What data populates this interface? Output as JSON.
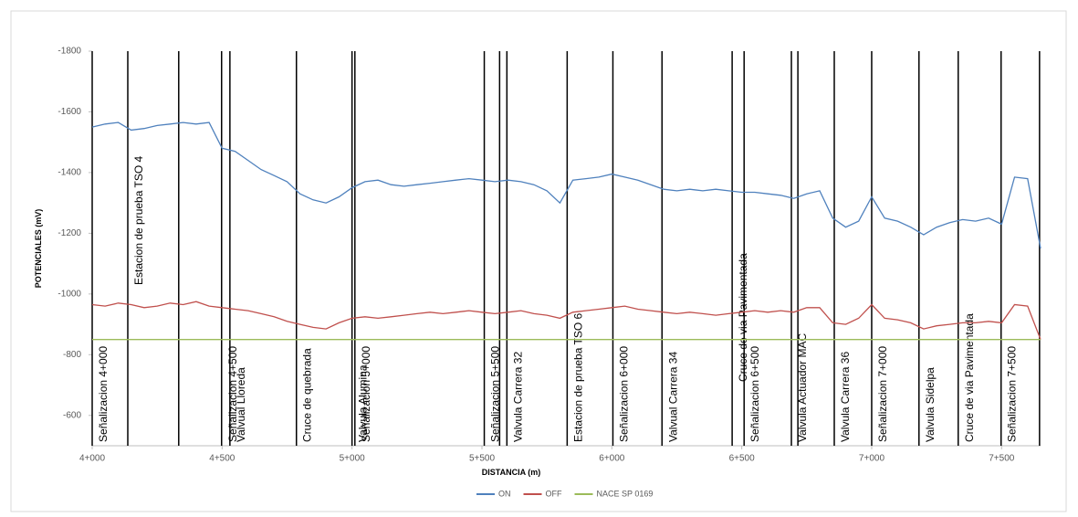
{
  "chart_data": {
    "type": "line",
    "x_label": "DISTANCIA (m)",
    "y_label": "POTENCIALES (mV)",
    "xlim": [
      4000,
      7650
    ],
    "ylim": [
      -500,
      -1800
    ],
    "xticks": [
      {
        "value": 4000,
        "label": "4+000"
      },
      {
        "value": 4500,
        "label": "4+500"
      },
      {
        "value": 5000,
        "label": "5+000"
      },
      {
        "value": 5500,
        "label": "5+500"
      },
      {
        "value": 6000,
        "label": "6+000"
      },
      {
        "value": 6500,
        "label": "6+500"
      },
      {
        "value": 7000,
        "label": "7+000"
      },
      {
        "value": 7500,
        "label": "7+500"
      }
    ],
    "yticks": [
      -1800,
      -1600,
      -1400,
      -1200,
      -1000,
      -800,
      -600
    ],
    "x": [
      4000,
      4050,
      4100,
      4150,
      4200,
      4250,
      4300,
      4350,
      4400,
      4450,
      4500,
      4550,
      4600,
      4650,
      4700,
      4750,
      4800,
      4850,
      4900,
      4950,
      5000,
      5050,
      5100,
      5150,
      5200,
      5250,
      5300,
      5350,
      5400,
      5450,
      5500,
      5550,
      5600,
      5650,
      5700,
      5750,
      5800,
      5850,
      5900,
      5950,
      6000,
      6050,
      6100,
      6150,
      6200,
      6250,
      6300,
      6350,
      6400,
      6450,
      6500,
      6550,
      6600,
      6650,
      6700,
      6750,
      6800,
      6850,
      6900,
      6950,
      7000,
      7050,
      7100,
      7150,
      7200,
      7250,
      7300,
      7350,
      7400,
      7450,
      7500,
      7550,
      7600,
      7650
    ],
    "series": [
      {
        "name": "ON",
        "color": "#4f81bd",
        "values": [
          -1550,
          -1560,
          -1565,
          -1540,
          -1545,
          -1555,
          -1560,
          -1565,
          -1560,
          -1565,
          -1480,
          -1470,
          -1440,
          -1410,
          -1390,
          -1370,
          -1330,
          -1310,
          -1300,
          -1320,
          -1350,
          -1370,
          -1375,
          -1360,
          -1355,
          -1360,
          -1365,
          -1370,
          -1375,
          -1380,
          -1375,
          -1370,
          -1375,
          -1370,
          -1360,
          -1340,
          -1300,
          -1375,
          -1380,
          -1385,
          -1395,
          -1385,
          -1375,
          -1360,
          -1345,
          -1340,
          -1345,
          -1340,
          -1345,
          -1340,
          -1335,
          -1335,
          -1330,
          -1325,
          -1315,
          -1330,
          -1340,
          -1250,
          -1220,
          -1240,
          -1320,
          -1250,
          -1240,
          -1220,
          -1195,
          -1220,
          -1235,
          -1245,
          -1240,
          -1250,
          -1230,
          -1385,
          -1380,
          -1150
        ]
      },
      {
        "name": "OFF",
        "color": "#c0504d",
        "values": [
          -965,
          -960,
          -970,
          -965,
          -955,
          -960,
          -970,
          -965,
          -975,
          -960,
          -955,
          -950,
          -945,
          -935,
          -925,
          -910,
          -900,
          -890,
          -885,
          -905,
          -920,
          -925,
          -920,
          -925,
          -930,
          -935,
          -940,
          -935,
          -940,
          -945,
          -940,
          -935,
          -940,
          -945,
          -935,
          -930,
          -920,
          -940,
          -945,
          -950,
          -955,
          -960,
          -950,
          -945,
          -940,
          -935,
          -940,
          -935,
          -930,
          -935,
          -940,
          -945,
          -940,
          -945,
          -940,
          -955,
          -955,
          -905,
          -900,
          -920,
          -965,
          -920,
          -915,
          -905,
          -885,
          -895,
          -900,
          -905,
          -905,
          -910,
          -905,
          -965,
          -960,
          -850
        ]
      },
      {
        "name": "NACE SP 0169",
        "color": "#9bbb59",
        "x": [
          4000,
          7650
        ],
        "values": [
          -850,
          -850
        ]
      }
    ],
    "markers": [
      4333,
      5568,
      6716,
      7646
    ],
    "annotations": [
      {
        "x": 4000,
        "label": "Señalizacion 4+000"
      },
      {
        "x": 4137,
        "label": "Estacion de prueba TSO 4"
      },
      {
        "x": 4498,
        "label": "Señalizacion 4+500"
      },
      {
        "x": 4530,
        "label": "Valvual Lloreda"
      },
      {
        "x": 4786,
        "label": "Cruce de quebrada"
      },
      {
        "x": 5000,
        "label": "Valvula Alumina"
      },
      {
        "x": 5011,
        "label": "Señalizacion 5+000"
      },
      {
        "x": 5509,
        "label": "Señalizacion 5+500"
      },
      {
        "x": 5596,
        "label": "Valvula Carrera 32"
      },
      {
        "x": 5828,
        "label": "Estacion de prueba TSO 6"
      },
      {
        "x": 6004,
        "label": "Señalizacion 6+000"
      },
      {
        "x": 6193,
        "label": "Valvual Carrera 34"
      },
      {
        "x": 6463,
        "label": "Cruce de via Pavimentada"
      },
      {
        "x": 6509,
        "label": "Señalizacion 6+500"
      },
      {
        "x": 6691,
        "label": "Valvula Actuador MAC"
      },
      {
        "x": 6856,
        "label": "Valvula Carrera 36"
      },
      {
        "x": 7000,
        "label": "Señalizacion 7+000"
      },
      {
        "x": 7182,
        "label": "Valvula Sidelpa"
      },
      {
        "x": 7333,
        "label": "Cruce de via Pavimentada"
      },
      {
        "x": 7498,
        "label": "Señalizacion 7+500"
      }
    ]
  }
}
